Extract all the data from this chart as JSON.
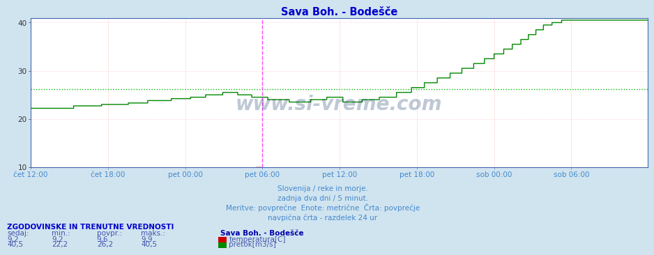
{
  "title": "Sava Boh. - Bodešče",
  "title_color": "#0000cc",
  "fig_bg_color": "#d0e4f0",
  "plot_bg_color": "#ffffff",
  "ylim": [
    10,
    41
  ],
  "yticks": [
    10,
    20,
    30,
    40
  ],
  "grid_color_h": "#ffbbbb",
  "grid_color_v": "#ff9999",
  "avg_pretok": 26.2,
  "avg_temp": 9.6,
  "vline_pos": 216,
  "vline_color": "#ff44ff",
  "n_total": 576,
  "xtick_positions": [
    0,
    72,
    144,
    216,
    288,
    360,
    432,
    504,
    575
  ],
  "xtick_labels": [
    "čet 12:00",
    "čet 18:00",
    "pet 00:00",
    "pet 06:00",
    "pet 12:00",
    "pet 18:00",
    "sob 00:00",
    "sob 06:00",
    "sob 06:00"
  ],
  "watermark": "www.si-vreme.com",
  "subtitle1": "Slovenija / reke in morje.",
  "subtitle2": "zadnja dva dni / 5 minut.",
  "subtitle3": "Meritve: povprečne  Enote: metrične  Črta: povprečje",
  "subtitle4": "navpična črta - razdelek 24 ur",
  "subtitle_color": "#4488cc",
  "table_header": "ZGODOVINSKE IN TRENUTNE VREDNOSTI",
  "table_header_color": "#0000cc",
  "table_cols": [
    "sedaj:",
    "min.:",
    "povpr.:",
    "maks.:"
  ],
  "table_color": "#4455aa",
  "row1": [
    "9,2",
    "9,2",
    "9,6",
    "9,9"
  ],
  "row2": [
    "40,5",
    "22,2",
    "26,2",
    "40,5"
  ],
  "legend_title": "Sava Boh. - Bodešče",
  "legend_color": "#0000aa",
  "legend_temp_color": "#cc0000",
  "legend_pretok_color": "#008800",
  "legend_temp_label": "temperatura[C]",
  "legend_pretok_label": "pretok[m3/s]",
  "temp_color": "#cc0000",
  "pretok_color": "#008800",
  "pretok_avg_color": "#00bb00",
  "temp_avg_color": "#cc0000"
}
